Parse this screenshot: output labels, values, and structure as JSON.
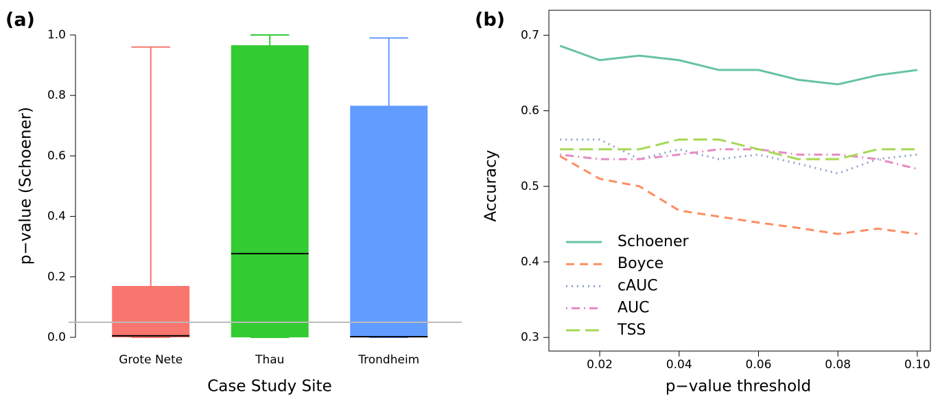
{
  "chart_data": [
    {
      "type": "box",
      "panel_label": "(a)",
      "xlabel": "Case Study Site",
      "ylabel": "p−value (Schoener)",
      "categories": [
        "Grote Nete",
        "Thau",
        "Trondheim"
      ],
      "colors": [
        "#f8766d",
        "#33cc33",
        "#619cff"
      ],
      "boxes": [
        {
          "min": 0,
          "q1": 0,
          "median": 0.005,
          "q3": 0.17,
          "max": 0.96
        },
        {
          "min": 0,
          "q1": 0,
          "median": 0.277,
          "q3": 0.966,
          "max": 1.0
        },
        {
          "min": 0,
          "q1": 0,
          "median": 0.002,
          "q3": 0.766,
          "max": 0.99
        }
      ],
      "hline": 0.05,
      "hline_color": "#bbbbbb",
      "ylim": [
        0,
        1
      ],
      "yticks": [
        {
          "value": 0,
          "label": "0.0"
        },
        0.2,
        0.4,
        0.6,
        0.8,
        {
          "value": 1,
          "label": "1.0"
        }
      ]
    },
    {
      "type": "line",
      "panel_label": "(b)",
      "xlabel": "p−value threshold",
      "ylabel": "Accuracy",
      "x": [
        0.01,
        0.02,
        0.03,
        0.04,
        0.05,
        0.06,
        0.07,
        0.08,
        0.09,
        0.1
      ],
      "series": [
        {
          "name": "Schoener",
          "color": "#66c2a5",
          "dash": "solid",
          "values": [
            0.686,
            0.667,
            0.673,
            0.667,
            0.654,
            0.654,
            0.641,
            0.635,
            0.647,
            0.654
          ]
        },
        {
          "name": "Boyce",
          "color": "#fc8d62",
          "dash": "dashed",
          "values": [
            0.54,
            0.51,
            0.5,
            0.468,
            0.46,
            0.452,
            0.445,
            0.437,
            0.444,
            0.437
          ]
        },
        {
          "name": "cAUC",
          "color": "#8da0cb",
          "dash": "dotted",
          "values": [
            0.562,
            0.562,
            0.536,
            0.549,
            0.536,
            0.542,
            0.53,
            0.517,
            0.536,
            0.542
          ]
        },
        {
          "name": "AUC",
          "color": "#e78ac3",
          "dash": "dotdash",
          "values": [
            0.542,
            0.536,
            0.536,
            0.542,
            0.549,
            0.549,
            0.542,
            0.542,
            0.536,
            0.523
          ]
        },
        {
          "name": "TSS",
          "color": "#a6d854",
          "dash": "longdash",
          "values": [
            0.549,
            0.549,
            0.549,
            0.562,
            0.562,
            0.549,
            0.536,
            0.536,
            0.549,
            0.549
          ]
        }
      ],
      "xlim": [
        0.0072,
        0.1033
      ],
      "ylim": [
        0.282,
        0.733
      ],
      "xticks": [
        0.02,
        0.04,
        0.06,
        0.08,
        {
          "value": 0.1,
          "label": "0.10"
        }
      ],
      "yticks": [
        0.3,
        0.4,
        0.5,
        0.6,
        0.7
      ],
      "legend": "lower left"
    }
  ]
}
